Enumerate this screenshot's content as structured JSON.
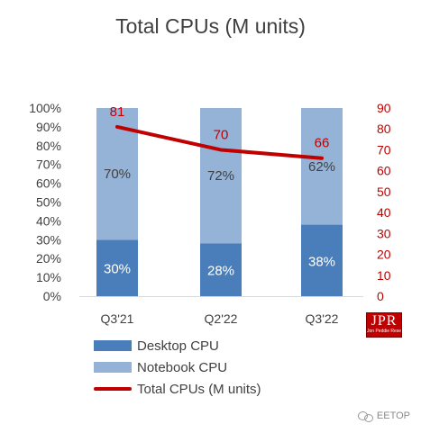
{
  "chart_data": {
    "type": "bar",
    "stacked": true,
    "title": "Total CPUs (M units)",
    "categories": [
      "Q3'21",
      "Q2'22",
      "Q3'22"
    ],
    "series": [
      {
        "name": "Desktop CPU",
        "axis": "left",
        "kind": "bar",
        "values": [
          30,
          28,
          38
        ],
        "labels": [
          "30%",
          "28%",
          "38%"
        ],
        "color": "#4a7ebb"
      },
      {
        "name": "Notebook CPU",
        "axis": "left",
        "kind": "bar",
        "values": [
          70,
          72,
          62
        ],
        "labels": [
          "70%",
          "72%",
          "62%"
        ],
        "color": "#95b3d7"
      },
      {
        "name": "Total CPUs (M units)",
        "axis": "right",
        "kind": "line",
        "values": [
          81,
          70,
          66
        ],
        "labels": [
          "81",
          "70",
          "66"
        ],
        "color": "#c00000"
      }
    ],
    "left_axis": {
      "ylim": [
        0,
        100
      ],
      "ticks": [
        "0%",
        "10%",
        "20%",
        "30%",
        "40%",
        "50%",
        "60%",
        "70%",
        "80%",
        "90%",
        "100%"
      ]
    },
    "right_axis": {
      "ylim": [
        0,
        90
      ],
      "ticks": [
        "0",
        "10",
        "20",
        "30",
        "40",
        "50",
        "60",
        "70",
        "80",
        "90"
      ],
      "color": "#c00000"
    },
    "grid": false,
    "legend_position": "bottom-left"
  },
  "logo": {
    "text": "JPR",
    "subtext": "Jon Peddie Research"
  },
  "watermark": {
    "text": "EETOP",
    "icon": "wechat-icon"
  }
}
